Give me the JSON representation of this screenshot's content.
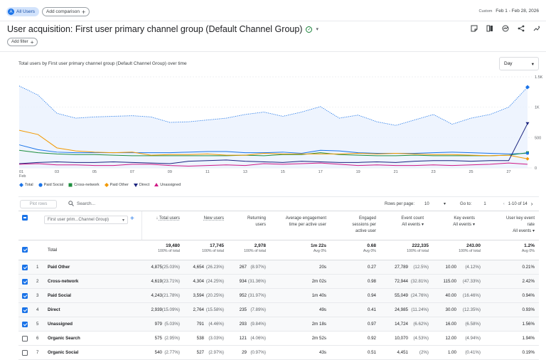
{
  "topbar": {
    "segment_avatar": "A",
    "segment_label": "All Users",
    "add_comparison": "Add comparison",
    "date_label": "Custom",
    "date_range": "Feb 1 - Feb 28, 2026"
  },
  "header": {
    "title": "User acquisition: First user primary channel group (Default Channel Group)",
    "add_filter": "Add filter"
  },
  "chart": {
    "title": "Total users by First user primary channel group (Default Channel Group) over time",
    "granularity": "Day"
  },
  "chart_data": {
    "type": "line",
    "ylim": [
      0,
      1500
    ],
    "y_ticks": [
      "1.5K",
      "1K",
      "500",
      "0"
    ],
    "x_ticks": [
      "01\nFeb",
      "03",
      "05",
      "07",
      "09",
      "11",
      "13",
      "15",
      "17",
      "19",
      "21",
      "23",
      "25",
      "27"
    ],
    "x": [
      1,
      2,
      3,
      4,
      5,
      6,
      7,
      8,
      9,
      10,
      11,
      12,
      13,
      14,
      15,
      16,
      17,
      18,
      19,
      20,
      21,
      22,
      23,
      24,
      25,
      26,
      27,
      28
    ],
    "colors": {
      "Total": "#1a73e8",
      "Paid Social": "#1a73e8",
      "Cross-network": "#1e8e3e",
      "Paid Other": "#f29900",
      "Direct": "#1a237e",
      "Unassigned": "#d01884"
    },
    "series": [
      {
        "name": "Total",
        "values": [
          1350,
          1200,
          900,
          820,
          840,
          850,
          860,
          840,
          750,
          760,
          790,
          820,
          880,
          920,
          850,
          920,
          1010,
          820,
          870,
          760,
          700,
          790,
          880,
          720,
          820,
          880,
          1000,
          1330
        ]
      },
      {
        "name": "Paid Social",
        "values": [
          380,
          300,
          260,
          250,
          250,
          250,
          250,
          250,
          250,
          260,
          270,
          270,
          250,
          250,
          260,
          240,
          290,
          280,
          250,
          240,
          240,
          240,
          250,
          260,
          250,
          240,
          230,
          240
        ]
      },
      {
        "name": "Cross-network",
        "values": [
          290,
          250,
          230,
          220,
          220,
          210,
          200,
          200,
          200,
          200,
          200,
          200,
          210,
          200,
          220,
          220,
          250,
          220,
          210,
          200,
          200,
          210,
          200,
          200,
          200,
          200,
          210,
          250
        ]
      },
      {
        "name": "Paid Other",
        "values": [
          620,
          550,
          330,
          280,
          260,
          250,
          260,
          210,
          220,
          220,
          230,
          210,
          210,
          240,
          230,
          230,
          230,
          230,
          240,
          230,
          240,
          230,
          220,
          220,
          210,
          200,
          210,
          150
        ]
      },
      {
        "name": "Direct",
        "values": [
          70,
          90,
          100,
          90,
          90,
          100,
          90,
          80,
          70,
          110,
          120,
          130,
          110,
          100,
          90,
          110,
          100,
          90,
          90,
          100,
          90,
          110,
          120,
          120,
          110,
          120,
          120,
          730
        ]
      },
      {
        "name": "Unassigned",
        "values": [
          60,
          70,
          50,
          50,
          40,
          40,
          60,
          60,
          40,
          30,
          40,
          50,
          40,
          70,
          60,
          70,
          80,
          60,
          40,
          50,
          40,
          40,
          50,
          40,
          50,
          60,
          80,
          60
        ]
      }
    ]
  },
  "legend": [
    {
      "label": "Total",
      "color": "#1a73e8",
      "shape": "diamond"
    },
    {
      "label": "Paid Social",
      "color": "#1a73e8",
      "shape": "circle"
    },
    {
      "label": "Cross-network",
      "color": "#1e8e3e",
      "shape": "square"
    },
    {
      "label": "Paid Other",
      "color": "#f29900",
      "shape": "diamond"
    },
    {
      "label": "Direct",
      "color": "#1a237e",
      "shape": "triangle-down"
    },
    {
      "label": "Unassigned",
      "color": "#d01884",
      "shape": "triangle-up"
    }
  ],
  "table_toolbar": {
    "plot_rows": "Plot rows",
    "search_placeholder": "Search...",
    "rows_per_page_label": "Rows per page:",
    "rows_per_page": "10",
    "goto_label": "Go to:",
    "goto_value": "1",
    "range": "1-10 of 14"
  },
  "table": {
    "dimension": "First user prim...Channel Group)",
    "headers": [
      {
        "l1": "Total users",
        "l2": ""
      },
      {
        "l1": "New users",
        "l2": ""
      },
      {
        "l1": "Returning",
        "l2": "users"
      },
      {
        "l1": "Average engagement",
        "l2": "time per active user"
      },
      {
        "l1": "Engaged",
        "l2": "sessions per",
        "l3": "active user"
      },
      {
        "l1": "Event count",
        "l2": "All events"
      },
      {
        "l1": "Key events",
        "l2": "All events"
      },
      {
        "l1": "User key event",
        "l2": "rate",
        "l3": "All events"
      }
    ],
    "total": {
      "label": "Total",
      "values": [
        "19,480",
        "17,745",
        "2,978",
        "1m 22s",
        "0.68",
        "222,335",
        "243.00",
        "1.2%"
      ],
      "subs": [
        "100% of total",
        "100% of total",
        "100% of total",
        "Avg 0%",
        "Avg 0%",
        "100% of total",
        "100% of total",
        "Avg 0%"
      ]
    },
    "rows": [
      {
        "num": "1",
        "name": "Paid Other",
        "checked": true,
        "cells": [
          "4,875",
          "(25.03%)",
          "4,654",
          "(26.23%)",
          "267",
          "(8.97%)",
          "20s",
          "0.27",
          "27,789",
          "(12.5%)",
          "10.00",
          "(4.12%)",
          "0.21%"
        ]
      },
      {
        "num": "2",
        "name": "Cross-network",
        "checked": true,
        "cells": [
          "4,619",
          "(23.71%)",
          "4,304",
          "(24.25%)",
          "934",
          "(31.36%)",
          "2m 02s",
          "0.98",
          "72,944",
          "(32.81%)",
          "115.00",
          "(47.33%)",
          "2.42%"
        ]
      },
      {
        "num": "3",
        "name": "Paid Social",
        "checked": true,
        "cells": [
          "4,243",
          "(21.78%)",
          "3,594",
          "(20.25%)",
          "952",
          "(31.97%)",
          "1m 40s",
          "0.94",
          "55,049",
          "(24.76%)",
          "40.00",
          "(16.46%)",
          "0.94%"
        ]
      },
      {
        "num": "4",
        "name": "Direct",
        "checked": true,
        "cells": [
          "2,939",
          "(15.09%)",
          "2,764",
          "(15.58%)",
          "235",
          "(7.89%)",
          "49s",
          "0.41",
          "24,985",
          "(11.24%)",
          "30.00",
          "(12.35%)",
          "0.93%"
        ]
      },
      {
        "num": "5",
        "name": "Unassigned",
        "checked": true,
        "cells": [
          "979",
          "(5.03%)",
          "791",
          "(4.46%)",
          "293",
          "(9.84%)",
          "2m 18s",
          "0.97",
          "14,724",
          "(6.62%)",
          "16.00",
          "(6.58%)",
          "1.56%"
        ]
      },
      {
        "num": "6",
        "name": "Organic Search",
        "checked": false,
        "cells": [
          "575",
          "(2.95%)",
          "538",
          "(3.03%)",
          "121",
          "(4.06%)",
          "2m 52s",
          "0.92",
          "10,070",
          "(4.53%)",
          "12.00",
          "(4.94%)",
          "1.94%"
        ]
      },
      {
        "num": "7",
        "name": "Organic Social",
        "checked": false,
        "cells": [
          "540",
          "(2.77%)",
          "527",
          "(2.97%)",
          "29",
          "(0.97%)",
          "43s",
          "0.51",
          "4,451",
          "(2%)",
          "1.00",
          "(0.41%)",
          "0.19%"
        ]
      }
    ]
  }
}
